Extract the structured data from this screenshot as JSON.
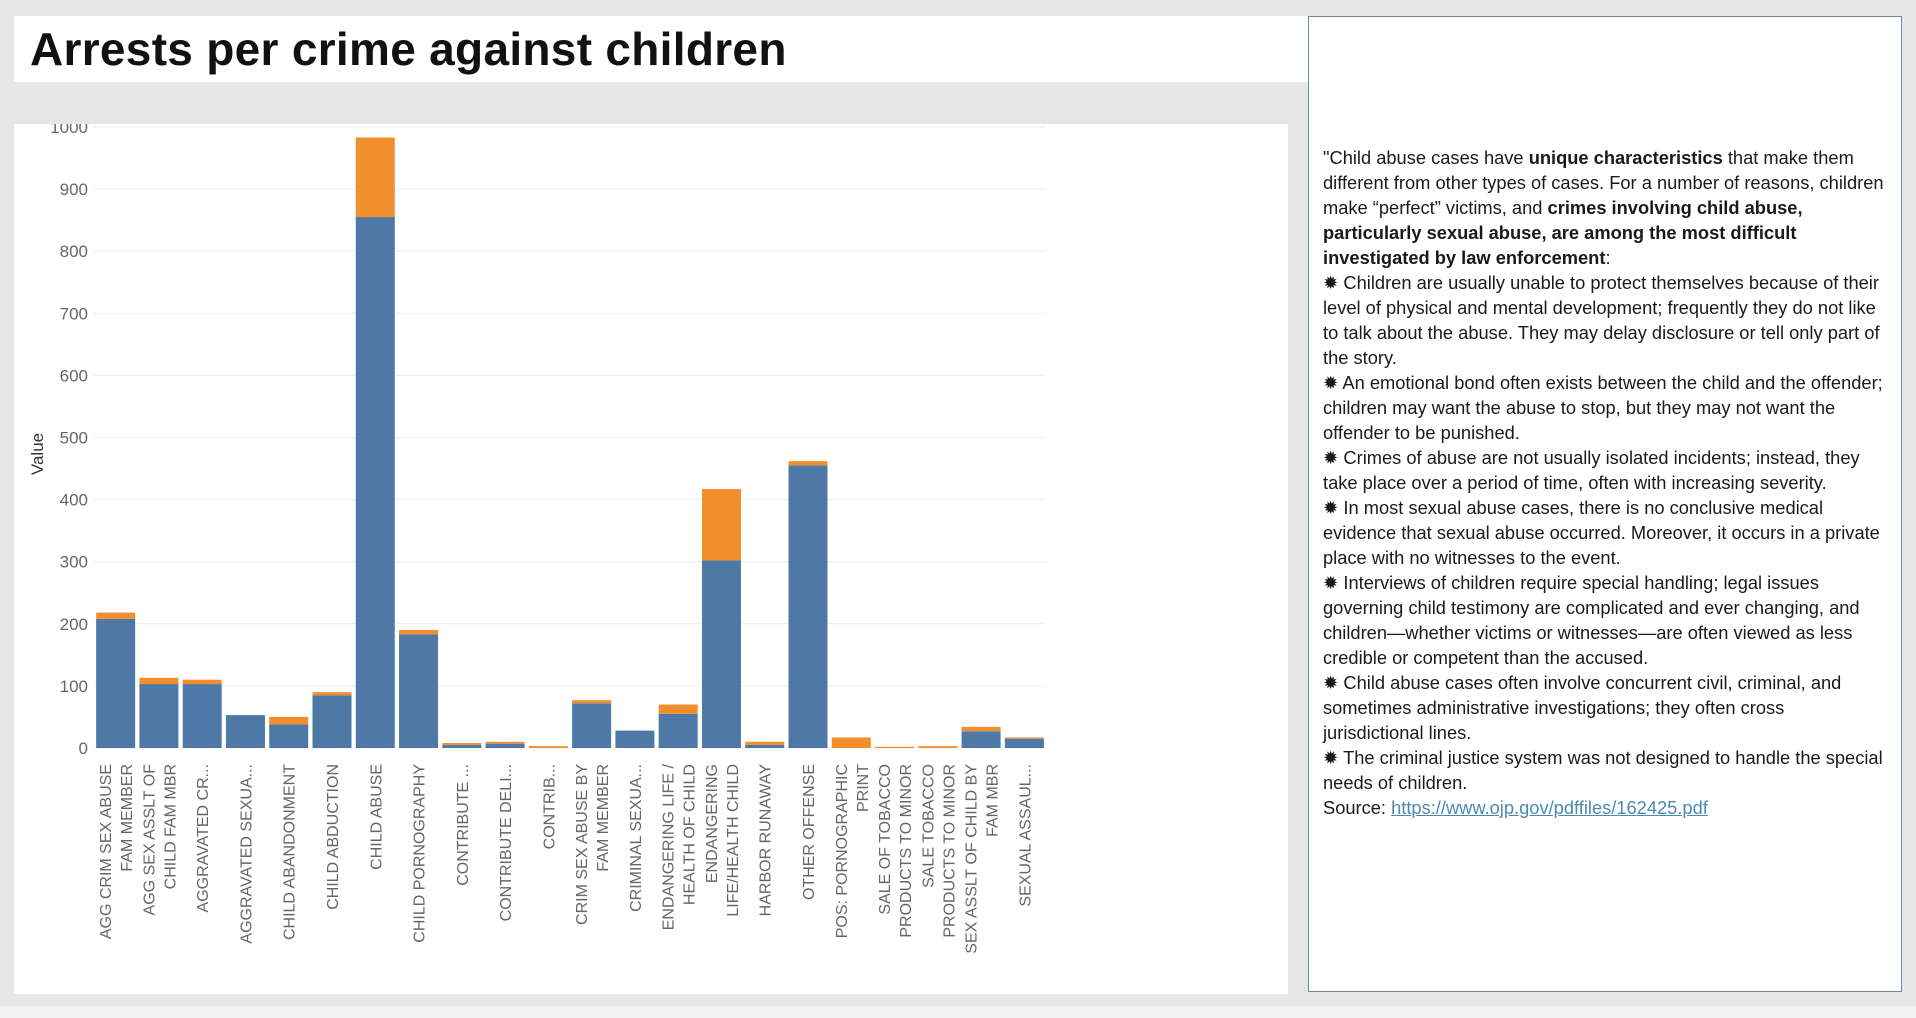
{
  "title": "Arrests per crime against children",
  "colors": {
    "series1": "#4e79a7",
    "series2": "#f28e2b",
    "grid": "#ececec",
    "axis_text": "#666666",
    "link": "#4a8ab3"
  },
  "chart_data": {
    "type": "bar",
    "stacked": true,
    "ylabel": "Value",
    "xlabel": "",
    "ylim": [
      0,
      1000
    ],
    "yticks": [
      "0",
      "100",
      "200",
      "300",
      "400",
      "500",
      "600",
      "700",
      "800",
      "900",
      "1000"
    ],
    "grid": true,
    "legend": "none",
    "categories": [
      [
        "AGG CRIM SEX ABUSE",
        "FAM MEMBER"
      ],
      [
        "AGG SEX ASSLT OF",
        "CHILD FAM MBR"
      ],
      [
        "AGGRAVATED CR..."
      ],
      [
        "AGGRAVATED SEXUA..."
      ],
      [
        "CHILD ABANDONMENT"
      ],
      [
        "CHILD ABDUCTION"
      ],
      [
        "CHILD ABUSE"
      ],
      [
        "CHILD PORNOGRAPHY"
      ],
      [
        "CONTRIBUTE ..."
      ],
      [
        "CONTRIBUTE DELI..."
      ],
      [
        "CONTRIB..."
      ],
      [
        "CRIM SEX ABUSE BY",
        "FAM MEMBER"
      ],
      [
        "CRIMINAL SEXUA..."
      ],
      [
        "ENDANGERING LIFE /",
        "HEALTH OF CHILD"
      ],
      [
        "ENDANGERING",
        "LIFE/HEALTH CHILD"
      ],
      [
        "HARBOR RUNAWAY"
      ],
      [
        "OTHER OFFENSE"
      ],
      [
        "POS: PORNOGRAPHIC",
        "PRINT"
      ],
      [
        "SALE OF TOBACCO",
        "PRODUCTS TO MINOR"
      ],
      [
        "SALE TOBACCO",
        "PRODUCTS TO MINOR"
      ],
      [
        "SEX ASSLT OF CHILD BY",
        "FAM MBR"
      ],
      [
        "SEXUAL ASSAUL..."
      ]
    ],
    "series": [
      {
        "values": [
          208,
          103,
          103,
          53,
          38,
          85,
          855,
          183,
          5,
          7,
          0,
          72,
          28,
          55,
          302,
          5,
          455,
          0,
          0,
          0,
          27,
          15
        ]
      },
      {
        "values": [
          10,
          10,
          7,
          0,
          12,
          5,
          128,
          7,
          3,
          3,
          3,
          5,
          0,
          15,
          115,
          5,
          7,
          17,
          2,
          3,
          7,
          2
        ]
      }
    ]
  },
  "panel": {
    "intro_1": "\"Child abuse cases have ",
    "intro_bold_1": "unique characteristics",
    "intro_2": " that make them different from other types of cases. For a number of reasons, children make “perfect” victims, and ",
    "intro_bold_2": "crimes involving child abuse, particularly sexual abuse, are among the most difficult investigated by law enforcement",
    "intro_3": ":",
    "bullet_glyph": "✹",
    "bullets": [
      "Children are usually unable to protect themselves because of their level of physical and mental development; frequently they do not like to talk about the abuse. They may delay disclosure or tell only part of the story.",
      "An emotional bond often exists between the child and the offender; children may want the abuse to stop, but they may not want the offender to be punished.",
      "Crimes of abuse are not usually isolated incidents; instead, they take place over a period of time, often with increasing severity.",
      "In most sexual abuse cases, there is no conclusive medical evidence that sexual abuse occurred. Moreover, it occurs in a private place with no witnesses to the event.",
      "Interviews of children require special handling; legal issues governing child testimony are complicated and ever changing, and children—whether victims or witnesses—are often viewed as less credible or competent than the accused.",
      "Child abuse cases often involve concurrent civil, criminal, and sometimes administrative investigations; they often cross jurisdictional lines.",
      "The criminal justice system was not designed to handle the special needs of children."
    ],
    "source_label": "Source: ",
    "source_link": "https://www.ojp.gov/pdffiles/162425.pdf"
  }
}
